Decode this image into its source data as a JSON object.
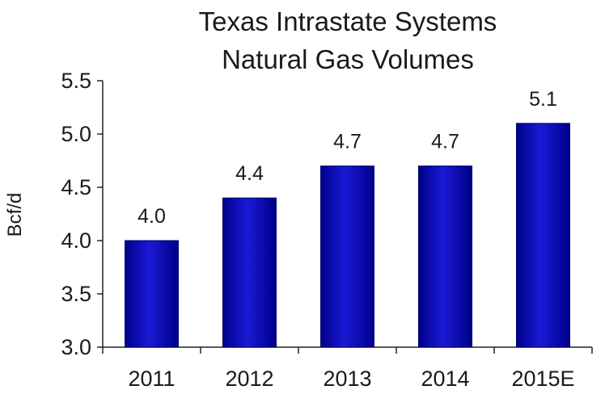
{
  "chart_data": {
    "type": "bar",
    "title_lines": [
      "Texas Intrastate Systems",
      "Natural Gas Volumes"
    ],
    "xlabel": "",
    "ylabel": "Bcf/d",
    "categories": [
      "2011",
      "2012",
      "2013",
      "2014",
      "2015E"
    ],
    "values": [
      4.0,
      4.4,
      4.7,
      4.7,
      5.1
    ],
    "data_labels": [
      "4.0",
      "4.4",
      "4.7",
      "4.7",
      "5.1"
    ],
    "ylim": [
      3.0,
      5.5
    ],
    "yticks": [
      "3.0",
      "3.5",
      "4.0",
      "4.5",
      "5.0",
      "5.5"
    ],
    "grid": false,
    "legend": "none",
    "bar_color": "#1a1ad6",
    "bar_color_dark": "#00008a"
  }
}
